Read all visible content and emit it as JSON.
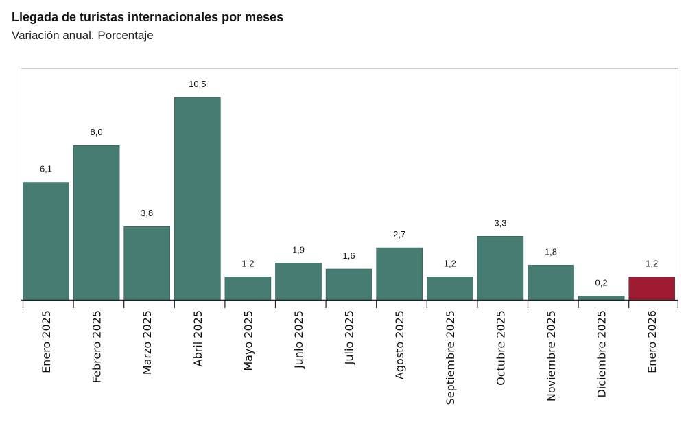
{
  "chart_data": {
    "type": "bar",
    "title": "Llegada de turistas internacionales por meses",
    "subtitle": "Variación anual. Porcentaje",
    "categories": [
      "Enero 2025",
      "Febrero 2025",
      "Marzo 2025",
      "Abril 2025",
      "Mayo 2025",
      "Junio 2025",
      "Julio 2025",
      "Agosto 2025",
      "Septiembre 2025",
      "Octubre 2025",
      "Noviembre 2025",
      "Diciembre 2025",
      "Enero 2026"
    ],
    "values": [
      6.1,
      8.0,
      3.8,
      10.5,
      1.2,
      1.9,
      1.6,
      2.7,
      1.2,
      3.3,
      1.8,
      0.2,
      1.2
    ],
    "value_labels": [
      "6,1",
      "8,0",
      "3,8",
      "10,5",
      "1,2",
      "1,9",
      "1,6",
      "2,7",
      "1,2",
      "3,3",
      "1,8",
      "0,2",
      "1,2"
    ],
    "ylim": [
      0,
      12
    ],
    "grid": false,
    "legend": "none",
    "colors": {
      "bar": "#467c72",
      "highlight": "#9e1b32",
      "border": "#cccccc",
      "axis": "#222222"
    },
    "highlight_index": 12
  }
}
